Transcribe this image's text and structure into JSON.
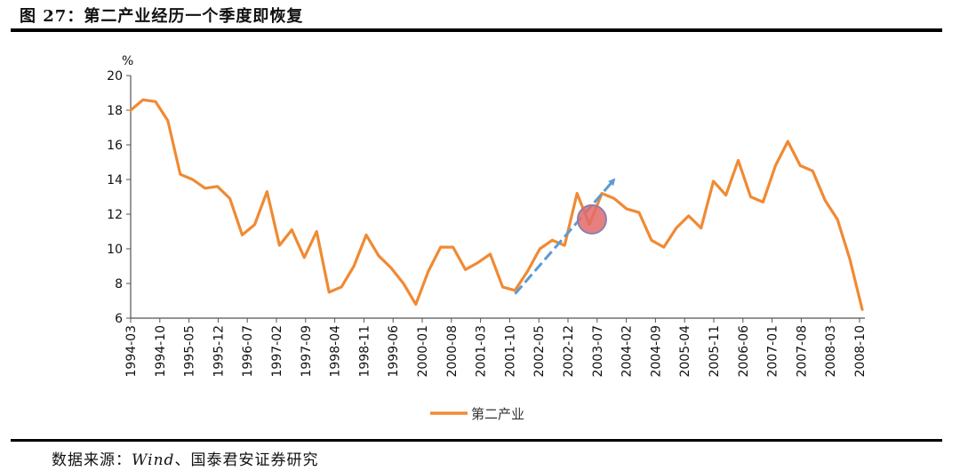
{
  "figure": {
    "title": "图 27：第二产业经历一个季度即恢复",
    "source_label": "数据来源：",
    "source_name": "Wind",
    "source_rest": "、国泰君安证券研究"
  },
  "colors": {
    "series": "#f08a33",
    "arrow": "#5b9bd5",
    "marker_fill": "#e26a6a",
    "marker_stroke": "#8a7fb0",
    "axis": "#555555"
  },
  "chart_data": {
    "type": "line",
    "unit": "%",
    "ylim": [
      6,
      20
    ],
    "yticks": [
      6,
      8,
      10,
      12,
      14,
      16,
      18,
      20
    ],
    "xtick_labels": [
      "1994-03",
      "1994-10",
      "1995-05",
      "1995-12",
      "1996-07",
      "1997-02",
      "1997-09",
      "1998-04",
      "1998-11",
      "1999-06",
      "2000-01",
      "2000-08",
      "2001-03",
      "2001-10",
      "2002-05",
      "2002-12",
      "2003-07",
      "2004-02",
      "2004-09",
      "2005-04",
      "2005-11",
      "2006-06",
      "2007-01",
      "2007-08",
      "2008-03",
      "2008-10"
    ],
    "grid": false,
    "legend_position": "bottom-center",
    "series": [
      {
        "name": "第二产业",
        "values": [
          18.0,
          18.6,
          18.5,
          17.4,
          14.3,
          14.0,
          13.5,
          13.6,
          12.9,
          10.8,
          11.4,
          13.3,
          10.2,
          11.1,
          9.5,
          11.0,
          7.5,
          7.8,
          9.0,
          10.8,
          9.6,
          8.9,
          8.0,
          6.8,
          8.7,
          10.1,
          10.1,
          8.8,
          9.2,
          9.7,
          7.8,
          7.6,
          8.7,
          10.0,
          10.5,
          10.2,
          13.2,
          11.4,
          13.2,
          12.9,
          12.3,
          12.1,
          10.5,
          10.1,
          11.2,
          11.9,
          11.2,
          13.9,
          13.1,
          15.1,
          13.0,
          12.7,
          14.8,
          16.2,
          14.8,
          14.5,
          12.8,
          11.7,
          9.4,
          6.5
        ]
      }
    ],
    "annotations": [
      {
        "type": "arrow",
        "from_index": 31,
        "from_value": 7.4,
        "to_index": 39,
        "to_value": 14.0
      },
      {
        "type": "circle",
        "index": 37.2,
        "value": 11.7
      }
    ]
  }
}
